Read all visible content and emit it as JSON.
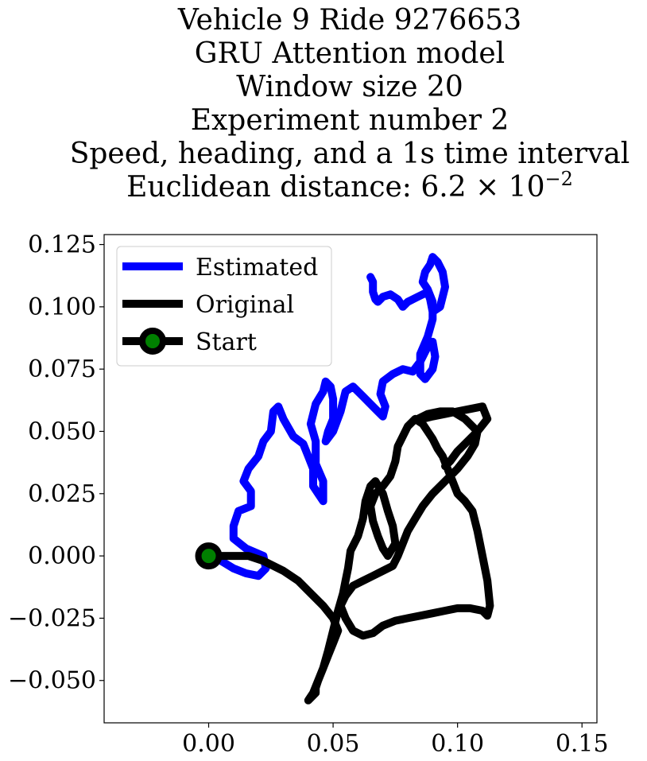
{
  "chart_data": {
    "type": "line",
    "title_lines": [
      "Vehicle 9 Ride 9276653",
      "GRU Attention model",
      "Window size 20",
      "Experiment number 2",
      "Speed, heading, and a 1s time interval"
    ],
    "title_metric": {
      "prefix": "Euclidean distance: 6.2 × 10",
      "exponent": "−2"
    },
    "xlabel": "",
    "ylabel": "",
    "xlim": [
      -0.042,
      0.156
    ],
    "ylim": [
      -0.067,
      0.129
    ],
    "xticks": [
      0.0,
      0.05,
      0.1,
      0.15
    ],
    "xtick_labels": [
      "0.00",
      "0.05",
      "0.10",
      "0.15"
    ],
    "yticks": [
      -0.05,
      -0.025,
      0.0,
      0.025,
      0.05,
      0.075,
      0.1,
      0.125
    ],
    "ytick_labels": [
      "−0.050",
      "−0.025",
      "0.000",
      "0.025",
      "0.050",
      "0.075",
      "0.100",
      "0.125"
    ],
    "grid": false,
    "legend_position": "top-left",
    "colors": {
      "estimated": "#0000ff",
      "original": "#000000",
      "start_fill": "#008000",
      "start_edge": "#000000"
    },
    "series": [
      {
        "name": "Estimated",
        "color": "#0000ff",
        "x": [
          0.0,
          0.005,
          0.01,
          0.015,
          0.02,
          0.023,
          0.022,
          0.015,
          0.01,
          0.01,
          0.012,
          0.017,
          0.017,
          0.014,
          0.016,
          0.02,
          0.022,
          0.025,
          0.026,
          0.028,
          0.03,
          0.034,
          0.038,
          0.04,
          0.042,
          0.042,
          0.044,
          0.046,
          0.046,
          0.043,
          0.043,
          0.041,
          0.043,
          0.046,
          0.047,
          0.049,
          0.05,
          0.05,
          0.048,
          0.047,
          0.05,
          0.053,
          0.055,
          0.058,
          0.062,
          0.067,
          0.07,
          0.071,
          0.069,
          0.07,
          0.074,
          0.078,
          0.082,
          0.085,
          0.088,
          0.09,
          0.091,
          0.09,
          0.087,
          0.085,
          0.085,
          0.088,
          0.09,
          0.09,
          0.088,
          0.086,
          0.087,
          0.089,
          0.09,
          0.092,
          0.094,
          0.095,
          0.093,
          0.09,
          0.089,
          0.088,
          0.084,
          0.08,
          0.078,
          0.076,
          0.073,
          0.07,
          0.068,
          0.067,
          0.066,
          0.066,
          0.065
        ],
        "y": [
          0.0,
          -0.002,
          -0.005,
          -0.007,
          -0.008,
          -0.005,
          0.0,
          0.003,
          0.007,
          0.012,
          0.018,
          0.02,
          0.026,
          0.03,
          0.035,
          0.04,
          0.046,
          0.05,
          0.058,
          0.06,
          0.055,
          0.048,
          0.045,
          0.04,
          0.035,
          0.028,
          0.025,
          0.022,
          0.03,
          0.037,
          0.046,
          0.053,
          0.061,
          0.066,
          0.07,
          0.068,
          0.063,
          0.055,
          0.05,
          0.046,
          0.05,
          0.058,
          0.066,
          0.068,
          0.064,
          0.059,
          0.056,
          0.06,
          0.065,
          0.07,
          0.073,
          0.075,
          0.074,
          0.078,
          0.084,
          0.086,
          0.08,
          0.075,
          0.071,
          0.073,
          0.081,
          0.088,
          0.095,
          0.102,
          0.107,
          0.11,
          0.114,
          0.117,
          0.12,
          0.118,
          0.114,
          0.108,
          0.1,
          0.098,
          0.103,
          0.106,
          0.104,
          0.102,
          0.1,
          0.103,
          0.105,
          0.104,
          0.102,
          0.103,
          0.106,
          0.11,
          0.112
        ]
      },
      {
        "name": "Original",
        "color": "#000000",
        "x": [
          0.0,
          0.008,
          0.012,
          0.016,
          0.022,
          0.03,
          0.036,
          0.041,
          0.046,
          0.05,
          0.052,
          0.05,
          0.048,
          0.046,
          0.044,
          0.043,
          0.043,
          0.041,
          0.04,
          0.042,
          0.044,
          0.046,
          0.048,
          0.05,
          0.052,
          0.054,
          0.055,
          0.056,
          0.057,
          0.06,
          0.062,
          0.063,
          0.065,
          0.067,
          0.07,
          0.072,
          0.074,
          0.075,
          0.072,
          0.07,
          0.068,
          0.066,
          0.065,
          0.067,
          0.07,
          0.073,
          0.075,
          0.076,
          0.078,
          0.08,
          0.083,
          0.086,
          0.088,
          0.09,
          0.092,
          0.094,
          0.096,
          0.098,
          0.1,
          0.103,
          0.106,
          0.108,
          0.11,
          0.112,
          0.113,
          0.112,
          0.11,
          0.105,
          0.1,
          0.095,
          0.09,
          0.085,
          0.08,
          0.075,
          0.07,
          0.066,
          0.062,
          0.058,
          0.055,
          0.053,
          0.055,
          0.058,
          0.062,
          0.066,
          0.07,
          0.074,
          0.076,
          0.078,
          0.08,
          0.083,
          0.086,
          0.09,
          0.095,
          0.1,
          0.104,
          0.107,
          0.108,
          0.103,
          0.098,
          0.093,
          0.088,
          0.084,
          0.086,
          0.09,
          0.095,
          0.1,
          0.105,
          0.11,
          0.112,
          0.108,
          0.104,
          0.1,
          0.097,
          0.095
        ],
        "y": [
          0.0,
          0.0,
          0.0,
          0.0,
          -0.002,
          -0.006,
          -0.01,
          -0.015,
          -0.02,
          -0.025,
          -0.03,
          -0.035,
          -0.04,
          -0.045,
          -0.05,
          -0.053,
          -0.055,
          -0.057,
          -0.058,
          -0.055,
          -0.05,
          -0.045,
          -0.038,
          -0.03,
          -0.022,
          -0.015,
          -0.01,
          -0.005,
          0.002,
          0.008,
          0.015,
          0.022,
          0.028,
          0.03,
          0.025,
          0.018,
          0.012,
          0.005,
          0.0,
          0.003,
          0.008,
          0.014,
          0.02,
          0.025,
          0.028,
          0.032,
          0.038,
          0.044,
          0.048,
          0.052,
          0.055,
          0.053,
          0.05,
          0.047,
          0.043,
          0.04,
          0.035,
          0.03,
          0.025,
          0.022,
          0.018,
          0.01,
          0.0,
          -0.01,
          -0.02,
          -0.024,
          -0.022,
          -0.021,
          -0.021,
          -0.022,
          -0.023,
          -0.024,
          -0.025,
          -0.026,
          -0.028,
          -0.031,
          -0.032,
          -0.03,
          -0.025,
          -0.02,
          -0.016,
          -0.012,
          -0.01,
          -0.008,
          -0.006,
          -0.004,
          0.0,
          0.005,
          0.01,
          0.015,
          0.02,
          0.025,
          0.03,
          0.035,
          0.04,
          0.045,
          0.05,
          0.055,
          0.058,
          0.058,
          0.057,
          0.055,
          0.055,
          0.056,
          0.057,
          0.058,
          0.059,
          0.06,
          0.055,
          0.05,
          0.046,
          0.042,
          0.038,
          0.036
        ]
      }
    ],
    "start_point": {
      "name": "Start",
      "x": 0.0,
      "y": 0.0
    },
    "legend": [
      "Estimated",
      "Original",
      "Start"
    ]
  }
}
